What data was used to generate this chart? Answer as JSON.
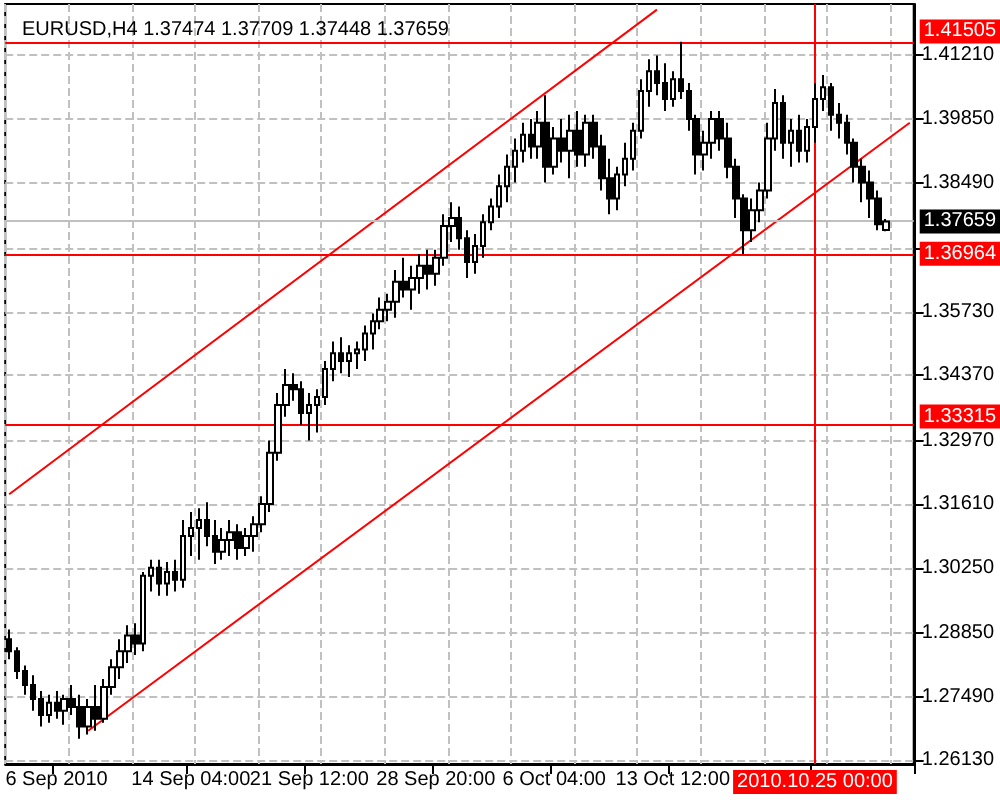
{
  "chart_data": {
    "type": "candlestick",
    "title": "EURUSD,H4 1.37474 1.37709 1.37448 1.37659",
    "categories": [
      null,
      null,
      null,
      null,
      null,
      null,
      "6 Sep 2010",
      null,
      null,
      null,
      null,
      null,
      null,
      null,
      null,
      null,
      null,
      null,
      null,
      null,
      null,
      null,
      null,
      "14 Sep 04:00",
      null,
      null,
      null,
      null,
      null,
      null,
      null,
      null,
      null,
      null,
      null,
      null,
      null,
      null,
      "21 Sep 12:00",
      null,
      null,
      null,
      null,
      null,
      null,
      null,
      null,
      null,
      null,
      null,
      null,
      null,
      null,
      null,
      "28 Sep 20:00",
      null,
      null,
      null,
      null,
      null,
      null,
      null,
      null,
      null,
      null,
      null,
      null,
      null,
      null,
      "6 Oct 04:00",
      null,
      null,
      null,
      null,
      null,
      null,
      null,
      null,
      null,
      null,
      null,
      null,
      null,
      null,
      "13 Oct 12:00",
      null,
      null,
      null,
      null,
      null,
      null,
      null,
      null,
      null,
      null,
      null,
      null,
      null,
      null,
      null,
      null,
      null,
      "2010.10.25 00:00",
      null,
      null,
      null,
      null,
      null,
      null,
      null,
      null,
      null,
      null,
      null,
      null
    ],
    "ohlc": [
      [
        1.2872,
        1.2893,
        1.2829,
        1.2846
      ],
      [
        1.2846,
        1.2855,
        1.2787,
        1.2804
      ],
      [
        1.2804,
        1.2816,
        1.2753,
        1.2774
      ],
      [
        1.2774,
        1.2795,
        1.2719,
        1.2744
      ],
      [
        1.2744,
        1.2761,
        1.2685,
        1.271
      ],
      [
        1.271,
        1.2753,
        1.2693,
        1.2736
      ],
      [
        1.2736,
        1.2761,
        1.2702,
        1.2719
      ],
      [
        1.2719,
        1.2753,
        1.2689,
        1.2744
      ],
      [
        1.2744,
        1.2774,
        1.271,
        1.2727
      ],
      [
        1.2727,
        1.2753,
        1.2659,
        1.2685
      ],
      [
        1.2685,
        1.2744,
        1.2668,
        1.2727
      ],
      [
        1.2727,
        1.2774,
        1.2676,
        1.2702
      ],
      [
        1.2702,
        1.2787,
        1.2693,
        1.277
      ],
      [
        1.277,
        1.2829,
        1.2753,
        1.2812
      ],
      [
        1.2812,
        1.2872,
        1.2787,
        1.2846
      ],
      [
        1.2846,
        1.2902,
        1.2821,
        1.288
      ],
      [
        1.288,
        1.2906,
        1.2838,
        1.2863
      ],
      [
        1.2863,
        1.3016,
        1.2846,
        1.3008
      ],
      [
        1.3008,
        1.3042,
        1.2974,
        1.3025
      ],
      [
        1.3025,
        1.3042,
        1.2965,
        1.2991
      ],
      [
        1.2991,
        1.3037,
        1.2965,
        1.3016
      ],
      [
        1.3016,
        1.3042,
        1.2974,
        1.2999
      ],
      [
        1.2999,
        1.3127,
        1.2982,
        1.3093
      ],
      [
        1.3093,
        1.3144,
        1.305,
        1.311
      ],
      [
        1.311,
        1.3152,
        1.3042,
        1.3127
      ],
      [
        1.3127,
        1.3165,
        1.3071,
        1.3093
      ],
      [
        1.3093,
        1.3127,
        1.3033,
        1.3059
      ],
      [
        1.3059,
        1.311,
        1.3042,
        1.3084
      ],
      [
        1.3084,
        1.3127,
        1.305,
        1.3101
      ],
      [
        1.3101,
        1.3118,
        1.3042,
        1.3067
      ],
      [
        1.3067,
        1.311,
        1.305,
        1.3093
      ],
      [
        1.3093,
        1.3135,
        1.3059,
        1.3118
      ],
      [
        1.3118,
        1.3178,
        1.3101,
        1.3161
      ],
      [
        1.3161,
        1.3297,
        1.3144,
        1.3271
      ],
      [
        1.3271,
        1.3399,
        1.3254,
        1.3373
      ],
      [
        1.3373,
        1.345,
        1.3348,
        1.3416
      ],
      [
        1.3416,
        1.3441,
        1.3382,
        1.3407
      ],
      [
        1.3407,
        1.3424,
        1.3331,
        1.3356
      ],
      [
        1.3356,
        1.3399,
        1.3297,
        1.3373
      ],
      [
        1.3373,
        1.3407,
        1.3314,
        1.339
      ],
      [
        1.339,
        1.3467,
        1.3373,
        1.345
      ],
      [
        1.345,
        1.3509,
        1.3424,
        1.3484
      ],
      [
        1.3484,
        1.3518,
        1.3441,
        1.3467
      ],
      [
        1.3467,
        1.3501,
        1.3433,
        1.3484
      ],
      [
        1.3484,
        1.3509,
        1.345,
        1.3492
      ],
      [
        1.3492,
        1.3543,
        1.3467,
        1.3526
      ],
      [
        1.3526,
        1.3569,
        1.3492,
        1.3552
      ],
      [
        1.3552,
        1.3603,
        1.3535,
        1.3577
      ],
      [
        1.3577,
        1.3611,
        1.3552,
        1.3594
      ],
      [
        1.3594,
        1.3662,
        1.356,
        1.3637
      ],
      [
        1.3637,
        1.3688,
        1.3603,
        1.362
      ],
      [
        1.362,
        1.3671,
        1.3577,
        1.3645
      ],
      [
        1.3645,
        1.3696,
        1.3611,
        1.3671
      ],
      [
        1.3671,
        1.3705,
        1.362,
        1.3654
      ],
      [
        1.3654,
        1.3705,
        1.3628,
        1.3688
      ],
      [
        1.3688,
        1.3781,
        1.3671,
        1.3756
      ],
      [
        1.3756,
        1.3807,
        1.3722,
        1.3773
      ],
      [
        1.3773,
        1.3798,
        1.3705,
        1.373
      ],
      [
        1.373,
        1.3747,
        1.3645,
        1.3679
      ],
      [
        1.3679,
        1.3739,
        1.3654,
        1.3713
      ],
      [
        1.3713,
        1.3781,
        1.3688,
        1.3764
      ],
      [
        1.3764,
        1.3815,
        1.3747,
        1.3798
      ],
      [
        1.3798,
        1.3866,
        1.3773,
        1.3841
      ],
      [
        1.3841,
        1.3909,
        1.3807,
        1.3883
      ],
      [
        1.3883,
        1.3943,
        1.3849,
        1.3917
      ],
      [
        1.3917,
        1.3977,
        1.3892,
        1.3951
      ],
      [
        1.3951,
        1.3985,
        1.39,
        1.3926
      ],
      [
        1.3926,
        1.4002,
        1.39,
        1.3977
      ],
      [
        1.3977,
        1.4036,
        1.3849,
        1.3883
      ],
      [
        1.3883,
        1.3968,
        1.3866,
        1.3943
      ],
      [
        1.3943,
        1.3985,
        1.3892,
        1.3917
      ],
      [
        1.3917,
        1.3994,
        1.3858,
        1.396
      ],
      [
        1.396,
        1.4002,
        1.3883,
        1.3909
      ],
      [
        1.3909,
        1.3994,
        1.3883,
        1.3977
      ],
      [
        1.3977,
        1.3994,
        1.39,
        1.3926
      ],
      [
        1.3926,
        1.3951,
        1.3832,
        1.3858
      ],
      [
        1.3858,
        1.39,
        1.3781,
        1.3815
      ],
      [
        1.3815,
        1.3883,
        1.379,
        1.3866
      ],
      [
        1.3866,
        1.3934,
        1.3841,
        1.39
      ],
      [
        1.39,
        1.3977,
        1.3875,
        1.396
      ],
      [
        1.396,
        1.407,
        1.3943,
        1.4045
      ],
      [
        1.4045,
        1.4113,
        1.4011,
        1.4087
      ],
      [
        1.4087,
        1.4121,
        1.4036,
        1.4062
      ],
      [
        1.4062,
        1.4104,
        1.4002,
        1.4028
      ],
      [
        1.4028,
        1.4087,
        1.4011,
        1.407
      ],
      [
        1.407,
        1.415,
        1.4028,
        1.4045
      ],
      [
        1.4045,
        1.4062,
        1.396,
        1.3985
      ],
      [
        1.3985,
        1.3994,
        1.3866,
        1.3909
      ],
      [
        1.3909,
        1.396,
        1.3875,
        1.3934
      ],
      [
        1.3934,
        1.4002,
        1.39,
        1.3985
      ],
      [
        1.3985,
        1.4002,
        1.3917,
        1.3943
      ],
      [
        1.3943,
        1.3977,
        1.3858,
        1.3883
      ],
      [
        1.3883,
        1.39,
        1.3773,
        1.3815
      ],
      [
        1.3815,
        1.3824,
        1.3696,
        1.3747
      ],
      [
        1.3747,
        1.3815,
        1.3722,
        1.379
      ],
      [
        1.379,
        1.3849,
        1.3764,
        1.3832
      ],
      [
        1.3832,
        1.3977,
        1.3815,
        1.3943
      ],
      [
        1.3943,
        1.4049,
        1.3917,
        1.4019
      ],
      [
        1.4019,
        1.4036,
        1.39,
        1.3934
      ],
      [
        1.3934,
        1.3985,
        1.3883,
        1.396
      ],
      [
        1.396,
        1.3994,
        1.3892,
        1.3917
      ],
      [
        1.3917,
        1.3985,
        1.3892,
        1.3968
      ],
      [
        1.3968,
        1.4062,
        1.3934,
        1.4028
      ],
      [
        1.4028,
        1.4079,
        1.4002,
        1.4053
      ],
      [
        1.4053,
        1.4062,
        1.396,
        1.3994
      ],
      [
        1.3994,
        1.4019,
        1.3943,
        1.3977
      ],
      [
        1.3977,
        1.3994,
        1.3909,
        1.3934
      ],
      [
        1.3934,
        1.3943,
        1.3849,
        1.3883
      ],
      [
        1.3883,
        1.39,
        1.3807,
        1.3849
      ],
      [
        1.3849,
        1.3875,
        1.3773,
        1.3815
      ],
      [
        1.3815,
        1.3832,
        1.3747,
        1.376
      ],
      [
        1.37474,
        1.37709,
        1.37448,
        1.37659
      ],
      null,
      null,
      null
    ],
    "color": "#000000",
    "series": [
      {
        "type": "line",
        "color": "#ff0000",
        "values": [
          1.3182,
          null,
          null,
          null,
          null,
          null,
          null,
          null,
          null,
          null,
          null,
          null,
          null,
          null,
          null,
          null,
          null,
          null,
          null,
          null,
          null,
          null,
          null,
          null,
          null,
          null,
          null,
          null,
          null,
          null,
          null,
          null,
          null,
          null,
          null,
          null,
          null,
          null,
          null,
          null,
          null,
          null,
          null,
          null,
          null,
          null,
          null,
          null,
          null,
          null,
          null,
          null,
          null,
          null,
          null,
          null,
          null,
          null,
          null,
          null,
          null,
          null,
          null,
          null,
          null,
          null,
          null,
          null,
          null,
          null,
          null,
          null,
          null,
          null,
          null,
          null,
          null,
          null,
          null,
          null,
          null,
          null,
          1.4219,
          null,
          null,
          null,
          null,
          null,
          null,
          null,
          null,
          null,
          null,
          null,
          null,
          null,
          null,
          null,
          null,
          null,
          null,
          null,
          null,
          null,
          null,
          null,
          null,
          null,
          null,
          null,
          null,
          null,
          null,
          null,
          null
        ]
      },
      {
        "type": "line",
        "color": "#ff0000",
        "values": [
          null,
          null,
          null,
          null,
          null,
          null,
          null,
          null,
          null,
          null,
          1.2676,
          null,
          null,
          null,
          null,
          null,
          null,
          null,
          null,
          null,
          null,
          null,
          null,
          null,
          null,
          null,
          null,
          null,
          null,
          null,
          null,
          null,
          null,
          null,
          null,
          null,
          null,
          null,
          null,
          null,
          null,
          null,
          null,
          null,
          null,
          null,
          null,
          null,
          null,
          null,
          null,
          null,
          null,
          null,
          null,
          null,
          null,
          null,
          null,
          null,
          null,
          null,
          null,
          null,
          null,
          null,
          null,
          null,
          null,
          null,
          null,
          null,
          null,
          null,
          null,
          null,
          null,
          null,
          null,
          null,
          null,
          null,
          null,
          null,
          null,
          null,
          null,
          null,
          null,
          null,
          null,
          null,
          null,
          null,
          null,
          null,
          null,
          null,
          null,
          null,
          null,
          null,
          null,
          null,
          null,
          null,
          null,
          null,
          null,
          null,
          null,
          null,
          null,
          null,
          1.3977
        ]
      }
    ],
    "ylim": [
      1.2605,
      1.4231
    ],
    "yticks": [
      {
        "value": 1.2613,
        "label": "1.26130"
      },
      {
        "value": 1.2749,
        "label": "1.27490"
      },
      {
        "value": 1.2885,
        "label": "1.28850"
      },
      {
        "value": 1.3025,
        "label": "1.30250"
      },
      {
        "value": 1.3161,
        "label": "1.31610"
      },
      {
        "value": 1.3297,
        "label": "1.32970"
      },
      {
        "value": 1.3437,
        "label": "1.34370"
      },
      {
        "value": 1.3573,
        "label": "1.35730"
      },
      {
        "value": 1.3709,
        "label": null
      },
      {
        "value": 1.3849,
        "label": "1.38490"
      },
      {
        "value": 1.3985,
        "label": "1.39850"
      },
      {
        "value": 1.4121,
        "label": "1.41210"
      }
    ],
    "grid": true,
    "marker": "none",
    "ref_lines": [
      {
        "axis": "y",
        "value": 1.41505,
        "label": "1.41505",
        "color": "#ff0000"
      },
      {
        "axis": "y",
        "value": 1.36964,
        "label": "1.36964",
        "color": "#ff0000"
      },
      {
        "axis": "y",
        "value": 1.33315,
        "label": "1.33315",
        "color": "#ff0000"
      },
      {
        "axis": "y",
        "value": 1.37659,
        "label": "1.37659",
        "color": "#c0c0c0"
      },
      {
        "axis": "x",
        "value": "2010.10.25 00:00",
        "color": "#ff0000"
      }
    ]
  }
}
